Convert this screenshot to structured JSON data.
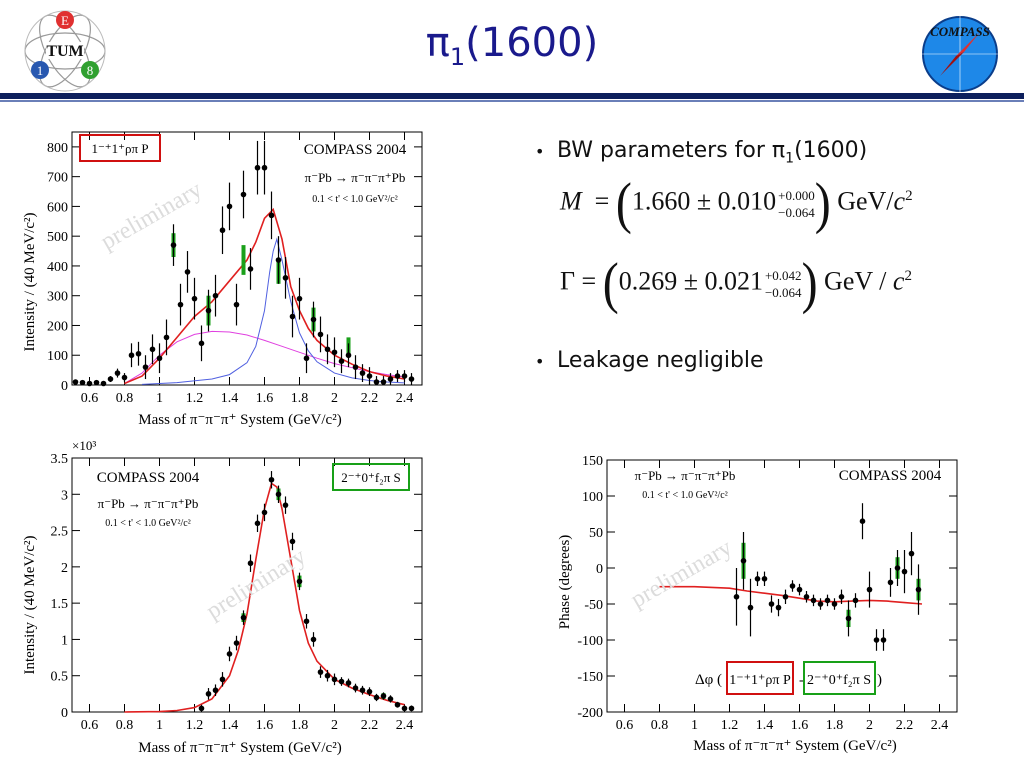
{
  "header": {
    "title_main": "π",
    "title_sub": "1",
    "title_suffix": "(1600)",
    "logo_left": {
      "letters": [
        "E",
        "TUM",
        "1",
        "8"
      ]
    },
    "logo_right": {
      "text": "COMPASS"
    }
  },
  "bullets": {
    "b1_prefix": "BW parameters for π",
    "b1_sub": "1",
    "b1_suffix": "(1600)",
    "b2": "Leakage negligible",
    "mass_eq": {
      "lhs": "M",
      "eq": "=",
      "value": "1.660 ± 0.010",
      "up": "+0.000",
      "down": "−0.064",
      "unit": "GeV/",
      "unit_c": "c",
      "unit_exp": "2"
    },
    "width_eq": {
      "lhs": "Γ",
      "eq": "=",
      "value": "0.269 ± 0.021",
      "up": "+0.042",
      "down": "−0.064",
      "unit": "GeV / ",
      "unit_c": "c",
      "unit_exp": "2"
    }
  },
  "colors": {
    "title": "#1a1a8c",
    "rule": "#0d1f5c",
    "fit": "#e02020",
    "bw": "#5060e0",
    "bg_curve": "#e040e0",
    "green": "#1aa01a",
    "red_box": "#d01010",
    "green_box": "#18a018"
  },
  "chart_data": [
    {
      "type": "scatter",
      "label_box": "1⁻⁺1⁺ρπ P",
      "experiment": "COMPASS 2004",
      "reaction": "π⁻Pb → π⁻π⁻π⁺Pb",
      "tcut": "0.1 < t' < 1.0 GeV²/c²",
      "watermark": "preliminary",
      "xlabel": "Mass of π⁻π⁻π⁺ System (GeV/c²)",
      "ylabel": "Intensity / (40 MeV/c²)",
      "xlim": [
        0.5,
        2.5
      ],
      "ylim": [
        0,
        850
      ],
      "xticks": [
        "0.6",
        "0.8",
        "1",
        "1.2",
        "1.4",
        "1.6",
        "1.8",
        "2",
        "2.2",
        "2.4"
      ],
      "yticks": [
        "0",
        "100",
        "200",
        "300",
        "400",
        "500",
        "600",
        "700",
        "800"
      ],
      "points": [
        {
          "x": 0.52,
          "y": 10,
          "e": 5
        },
        {
          "x": 0.56,
          "y": 8,
          "e": 5
        },
        {
          "x": 0.6,
          "y": 5,
          "e": 5
        },
        {
          "x": 0.64,
          "y": 8,
          "e": 5
        },
        {
          "x": 0.68,
          "y": 5,
          "e": 5
        },
        {
          "x": 0.72,
          "y": 20,
          "e": 10
        },
        {
          "x": 0.76,
          "y": 40,
          "e": 15
        },
        {
          "x": 0.8,
          "y": 25,
          "e": 15
        },
        {
          "x": 0.84,
          "y": 100,
          "e": 40
        },
        {
          "x": 0.88,
          "y": 105,
          "e": 40
        },
        {
          "x": 0.92,
          "y": 60,
          "e": 40
        },
        {
          "x": 0.96,
          "y": 120,
          "e": 50
        },
        {
          "x": 1.0,
          "y": 90,
          "e": 50
        },
        {
          "x": 1.04,
          "y": 160,
          "e": 60
        },
        {
          "x": 1.08,
          "y": 470,
          "e": 70
        },
        {
          "x": 1.12,
          "y": 270,
          "e": 70
        },
        {
          "x": 1.16,
          "y": 380,
          "e": 70
        },
        {
          "x": 1.2,
          "y": 290,
          "e": 70
        },
        {
          "x": 1.24,
          "y": 140,
          "e": 60
        },
        {
          "x": 1.28,
          "y": 250,
          "e": 70
        },
        {
          "x": 1.32,
          "y": 300,
          "e": 70
        },
        {
          "x": 1.36,
          "y": 520,
          "e": 80
        },
        {
          "x": 1.4,
          "y": 600,
          "e": 80
        },
        {
          "x": 1.44,
          "y": 270,
          "e": 70
        },
        {
          "x": 1.48,
          "y": 640,
          "e": 80
        },
        {
          "x": 1.52,
          "y": 390,
          "e": 70
        },
        {
          "x": 1.56,
          "y": 730,
          "e": 90
        },
        {
          "x": 1.6,
          "y": 730,
          "e": 90
        },
        {
          "x": 1.64,
          "y": 570,
          "e": 80
        },
        {
          "x": 1.68,
          "y": 420,
          "e": 80
        },
        {
          "x": 1.72,
          "y": 360,
          "e": 70
        },
        {
          "x": 1.76,
          "y": 230,
          "e": 70
        },
        {
          "x": 1.8,
          "y": 290,
          "e": 70
        },
        {
          "x": 1.84,
          "y": 90,
          "e": 50
        },
        {
          "x": 1.88,
          "y": 220,
          "e": 60
        },
        {
          "x": 1.92,
          "y": 170,
          "e": 60
        },
        {
          "x": 1.96,
          "y": 120,
          "e": 50
        },
        {
          "x": 2.0,
          "y": 110,
          "e": 50
        },
        {
          "x": 2.04,
          "y": 80,
          "e": 40
        },
        {
          "x": 2.08,
          "y": 100,
          "e": 40
        },
        {
          "x": 2.12,
          "y": 60,
          "e": 40
        },
        {
          "x": 2.16,
          "y": 40,
          "e": 30
        },
        {
          "x": 2.2,
          "y": 30,
          "e": 30
        },
        {
          "x": 2.24,
          "y": 10,
          "e": 20
        },
        {
          "x": 2.28,
          "y": 10,
          "e": 20
        },
        {
          "x": 2.32,
          "y": 20,
          "e": 20
        },
        {
          "x": 2.36,
          "y": 30,
          "e": 20
        },
        {
          "x": 2.4,
          "y": 30,
          "e": 20
        },
        {
          "x": 2.44,
          "y": 20,
          "e": 20
        }
      ],
      "green_points": [
        {
          "x": 1.08,
          "y": 470,
          "e": 40
        },
        {
          "x": 1.28,
          "y": 250,
          "e": 50
        },
        {
          "x": 1.48,
          "y": 420,
          "e": 50
        },
        {
          "x": 1.68,
          "y": 380,
          "e": 40
        },
        {
          "x": 1.88,
          "y": 220,
          "e": 40
        },
        {
          "x": 2.08,
          "y": 130,
          "e": 30
        }
      ],
      "curves": {
        "fit": [
          [
            0.8,
            5
          ],
          [
            0.9,
            30
          ],
          [
            1.0,
            90
          ],
          [
            1.1,
            160
          ],
          [
            1.2,
            230
          ],
          [
            1.3,
            280
          ],
          [
            1.4,
            350
          ],
          [
            1.5,
            420
          ],
          [
            1.55,
            480
          ],
          [
            1.6,
            560
          ],
          [
            1.65,
            590
          ],
          [
            1.7,
            490
          ],
          [
            1.75,
            330
          ],
          [
            1.8,
            250
          ],
          [
            1.85,
            190
          ],
          [
            1.9,
            150
          ],
          [
            2.0,
            100
          ],
          [
            2.1,
            70
          ],
          [
            2.2,
            45
          ],
          [
            2.3,
            30
          ],
          [
            2.4,
            20
          ]
        ],
        "bw": [
          [
            0.9,
            2
          ],
          [
            1.1,
            8
          ],
          [
            1.3,
            20
          ],
          [
            1.4,
            35
          ],
          [
            1.5,
            75
          ],
          [
            1.55,
            130
          ],
          [
            1.6,
            250
          ],
          [
            1.63,
            380
          ],
          [
            1.65,
            450
          ],
          [
            1.67,
            490
          ],
          [
            1.7,
            420
          ],
          [
            1.75,
            280
          ],
          [
            1.8,
            175
          ],
          [
            1.85,
            115
          ],
          [
            1.9,
            78
          ],
          [
            2.0,
            40
          ],
          [
            2.1,
            24
          ],
          [
            2.2,
            15
          ],
          [
            2.3,
            10
          ],
          [
            2.4,
            7
          ]
        ],
        "bg": [
          [
            0.8,
            5
          ],
          [
            0.9,
            40
          ],
          [
            1.0,
            100
          ],
          [
            1.1,
            145
          ],
          [
            1.2,
            170
          ],
          [
            1.3,
            180
          ],
          [
            1.4,
            178
          ],
          [
            1.5,
            168
          ],
          [
            1.6,
            150
          ],
          [
            1.7,
            130
          ],
          [
            1.8,
            110
          ],
          [
            1.9,
            90
          ],
          [
            2.0,
            72
          ],
          [
            2.1,
            58
          ],
          [
            2.2,
            45
          ],
          [
            2.3,
            35
          ],
          [
            2.4,
            27
          ]
        ]
      }
    },
    {
      "type": "scatter",
      "label_box": "2⁻⁺0⁺f₂π S",
      "experiment": "COMPASS 2004",
      "reaction": "π⁻Pb → π⁻π⁻π⁺Pb",
      "tcut": "0.1 < t' < 1.0 GeV²/c²",
      "watermark": "preliminary",
      "exponent": "×10³",
      "xlabel": "Mass of π⁻π⁻π⁺ System (GeV/c²)",
      "ylabel": "Intensity / (40 MeV/c²)",
      "xlim": [
        0.5,
        2.5
      ],
      "ylim": [
        0,
        3.5
      ],
      "xticks": [
        "0.6",
        "0.8",
        "1",
        "1.2",
        "1.4",
        "1.6",
        "1.8",
        "2",
        "2.2",
        "2.4"
      ],
      "yticks": [
        "0",
        "0.5",
        "1",
        "1.5",
        "2",
        "2.5",
        "3",
        "3.5"
      ],
      "points": [
        {
          "x": 1.24,
          "y": 0.05,
          "e": 0.05
        },
        {
          "x": 1.28,
          "y": 0.25,
          "e": 0.08
        },
        {
          "x": 1.32,
          "y": 0.3,
          "e": 0.08
        },
        {
          "x": 1.36,
          "y": 0.45,
          "e": 0.1
        },
        {
          "x": 1.4,
          "y": 0.8,
          "e": 0.1
        },
        {
          "x": 1.44,
          "y": 0.95,
          "e": 0.1
        },
        {
          "x": 1.48,
          "y": 1.3,
          "e": 0.1
        },
        {
          "x": 1.52,
          "y": 2.05,
          "e": 0.12
        },
        {
          "x": 1.56,
          "y": 2.6,
          "e": 0.12
        },
        {
          "x": 1.6,
          "y": 2.75,
          "e": 0.12
        },
        {
          "x": 1.64,
          "y": 3.2,
          "e": 0.12
        },
        {
          "x": 1.68,
          "y": 3.0,
          "e": 0.12
        },
        {
          "x": 1.72,
          "y": 2.85,
          "e": 0.12
        },
        {
          "x": 1.76,
          "y": 2.35,
          "e": 0.12
        },
        {
          "x": 1.8,
          "y": 1.8,
          "e": 0.12
        },
        {
          "x": 1.84,
          "y": 1.25,
          "e": 0.1
        },
        {
          "x": 1.88,
          "y": 1.0,
          "e": 0.1
        },
        {
          "x": 1.92,
          "y": 0.55,
          "e": 0.08
        },
        {
          "x": 1.96,
          "y": 0.5,
          "e": 0.08
        },
        {
          "x": 2.0,
          "y": 0.45,
          "e": 0.08
        },
        {
          "x": 2.04,
          "y": 0.42,
          "e": 0.06
        },
        {
          "x": 2.08,
          "y": 0.4,
          "e": 0.06
        },
        {
          "x": 2.12,
          "y": 0.33,
          "e": 0.06
        },
        {
          "x": 2.16,
          "y": 0.3,
          "e": 0.06
        },
        {
          "x": 2.2,
          "y": 0.28,
          "e": 0.06
        },
        {
          "x": 2.24,
          "y": 0.2,
          "e": 0.05
        },
        {
          "x": 2.28,
          "y": 0.22,
          "e": 0.05
        },
        {
          "x": 2.32,
          "y": 0.18,
          "e": 0.05
        },
        {
          "x": 2.36,
          "y": 0.1,
          "e": 0.04
        },
        {
          "x": 2.4,
          "y": 0.05,
          "e": 0.04
        },
        {
          "x": 2.44,
          "y": 0.05,
          "e": 0.04
        }
      ],
      "green_points": [
        {
          "x": 1.48,
          "y": 1.3,
          "e": 0.06
        },
        {
          "x": 1.68,
          "y": 3.0,
          "e": 0.08
        },
        {
          "x": 1.8,
          "y": 1.8,
          "e": 0.08
        },
        {
          "x": 2.28,
          "y": 0.22,
          "e": 0.04
        }
      ],
      "curves": {
        "fit": [
          [
            0.8,
            0
          ],
          [
            1.0,
            0.005
          ],
          [
            1.1,
            0.02
          ],
          [
            1.2,
            0.06
          ],
          [
            1.3,
            0.18
          ],
          [
            1.4,
            0.5
          ],
          [
            1.45,
            0.85
          ],
          [
            1.5,
            1.35
          ],
          [
            1.55,
            2.1
          ],
          [
            1.6,
            2.8
          ],
          [
            1.64,
            3.15
          ],
          [
            1.67,
            3.1
          ],
          [
            1.7,
            2.8
          ],
          [
            1.75,
            2.1
          ],
          [
            1.8,
            1.4
          ],
          [
            1.85,
            0.95
          ],
          [
            1.9,
            0.7
          ],
          [
            2.0,
            0.45
          ],
          [
            2.1,
            0.33
          ],
          [
            2.2,
            0.24
          ],
          [
            2.3,
            0.16
          ],
          [
            2.4,
            0.1
          ]
        ]
      }
    },
    {
      "type": "scatter",
      "label_box": "Δφ (1⁻⁺1⁺ρπ P - 2⁻⁺0⁺f₂π S)",
      "label_box_a": "1⁻⁺1⁺ρπ P",
      "label_box_b": "2⁻⁺0⁺f₂π S",
      "experiment": "COMPASS 2004",
      "reaction": "π⁻Pb → π⁻π⁻π⁺Pb",
      "tcut": "0.1 < t' < 1.0 GeV²/c²",
      "watermark": "preliminary",
      "xlabel": "Mass of π⁻π⁻π⁺ System (GeV/c²)",
      "ylabel": "Phase (degrees)",
      "xlim": [
        0.5,
        2.5
      ],
      "ylim": [
        -200,
        150
      ],
      "xticks": [
        "0.6",
        "0.8",
        "1",
        "1.2",
        "1.4",
        "1.6",
        "1.8",
        "2",
        "2.2",
        "2.4"
      ],
      "yticks": [
        "-200",
        "-150",
        "-100",
        "-50",
        "0",
        "50",
        "100",
        "150"
      ],
      "points": [
        {
          "x": 1.24,
          "y": -40,
          "e": 40
        },
        {
          "x": 1.28,
          "y": 10,
          "e": 40
        },
        {
          "x": 1.32,
          "y": -55,
          "e": 40
        },
        {
          "x": 1.36,
          "y": -15,
          "e": 10
        },
        {
          "x": 1.4,
          "y": -15,
          "e": 10
        },
        {
          "x": 1.44,
          "y": -50,
          "e": 12
        },
        {
          "x": 1.48,
          "y": -55,
          "e": 12
        },
        {
          "x": 1.52,
          "y": -40,
          "e": 10
        },
        {
          "x": 1.56,
          "y": -25,
          "e": 8
        },
        {
          "x": 1.6,
          "y": -30,
          "e": 8
        },
        {
          "x": 1.64,
          "y": -40,
          "e": 8
        },
        {
          "x": 1.68,
          "y": -45,
          "e": 8
        },
        {
          "x": 1.72,
          "y": -50,
          "e": 8
        },
        {
          "x": 1.76,
          "y": -45,
          "e": 8
        },
        {
          "x": 1.8,
          "y": -50,
          "e": 8
        },
        {
          "x": 1.84,
          "y": -40,
          "e": 10
        },
        {
          "x": 1.88,
          "y": -70,
          "e": 25
        },
        {
          "x": 1.92,
          "y": -45,
          "e": 10
        },
        {
          "x": 1.96,
          "y": 65,
          "e": 25
        },
        {
          "x": 2.0,
          "y": -30,
          "e": 25
        },
        {
          "x": 2.04,
          "y": -100,
          "e": 15
        },
        {
          "x": 2.08,
          "y": -100,
          "e": 15
        },
        {
          "x": 2.12,
          "y": -20,
          "e": 20
        },
        {
          "x": 2.16,
          "y": 0,
          "e": 25
        },
        {
          "x": 2.2,
          "y": -5,
          "e": 30
        },
        {
          "x": 2.24,
          "y": 20,
          "e": 30
        },
        {
          "x": 2.28,
          "y": -30,
          "e": 35
        }
      ],
      "green_points": [
        {
          "x": 1.28,
          "y": 10,
          "e": 25
        },
        {
          "x": 1.88,
          "y": -70,
          "e": 12
        },
        {
          "x": 2.16,
          "y": 0,
          "e": 15
        },
        {
          "x": 2.28,
          "y": -30,
          "e": 15
        }
      ],
      "curves": {
        "fit": [
          [
            0.8,
            -26
          ],
          [
            1.0,
            -26
          ],
          [
            1.2,
            -28
          ],
          [
            1.3,
            -32
          ],
          [
            1.4,
            -35
          ],
          [
            1.5,
            -38
          ],
          [
            1.6,
            -42
          ],
          [
            1.7,
            -46
          ],
          [
            1.8,
            -47
          ],
          [
            1.9,
            -46
          ],
          [
            2.0,
            -45
          ],
          [
            2.1,
            -46
          ],
          [
            2.2,
            -48
          ],
          [
            2.3,
            -50
          ]
        ]
      }
    }
  ]
}
